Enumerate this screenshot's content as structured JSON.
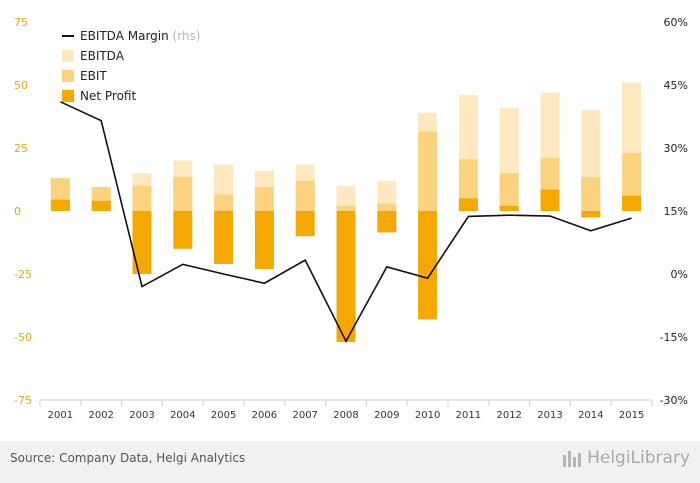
{
  "chart_data": {
    "type": "bar",
    "categories": [
      "2001",
      "2002",
      "2003",
      "2004",
      "2005",
      "2006",
      "2007",
      "2008",
      "2009",
      "2010",
      "2011",
      "2012",
      "2013",
      "2014",
      "2015"
    ],
    "series": [
      {
        "name": "EBITDA",
        "kind": "bar",
        "axis": "left",
        "color": "#fde8bf",
        "values": [
          13,
          9.5,
          15,
          20,
          18.5,
          16,
          18.5,
          10,
          12,
          39,
          46,
          41,
          47,
          40,
          51
        ]
      },
      {
        "name": "EBIT",
        "kind": "bar",
        "axis": "left",
        "color": "#fbd27e",
        "values": [
          13,
          9.5,
          10,
          13.5,
          6.5,
          9.5,
          12,
          2,
          3,
          31.5,
          20.5,
          15,
          21,
          13.5,
          23
        ]
      },
      {
        "name": "Net Profit",
        "kind": "bar",
        "axis": "left",
        "color": "#f5a800",
        "values": [
          4.5,
          4,
          -25,
          -15,
          -21,
          -23,
          -10,
          -52,
          -8.5,
          -43,
          5,
          2,
          8.5,
          -2.5,
          6
        ]
      },
      {
        "name": "EBITDA Margin",
        "note": "(rhs)",
        "kind": "line",
        "axis": "right",
        "color": "#111111",
        "values": [
          41,
          36.5,
          -3,
          2.3,
          0,
          -2.2,
          3.3,
          -16,
          1.7,
          -1,
          13.7,
          14,
          13.8,
          10.3,
          13.3
        ]
      }
    ],
    "y_left": {
      "ticks": [
        "75",
        "50",
        "25",
        "0",
        "-25",
        "-50",
        "-75"
      ],
      "range": [
        -75,
        75
      ]
    },
    "y_right": {
      "ticks": [
        "60%",
        "45%",
        "30%",
        "15%",
        "0%",
        "-15%",
        "-30%"
      ],
      "range": [
        -30,
        60
      ]
    },
    "legend_position": "top-left",
    "grid": false
  },
  "footer": {
    "source": "Source: Company Data, Helgi Analytics",
    "brand": "HelgiLibrary"
  }
}
